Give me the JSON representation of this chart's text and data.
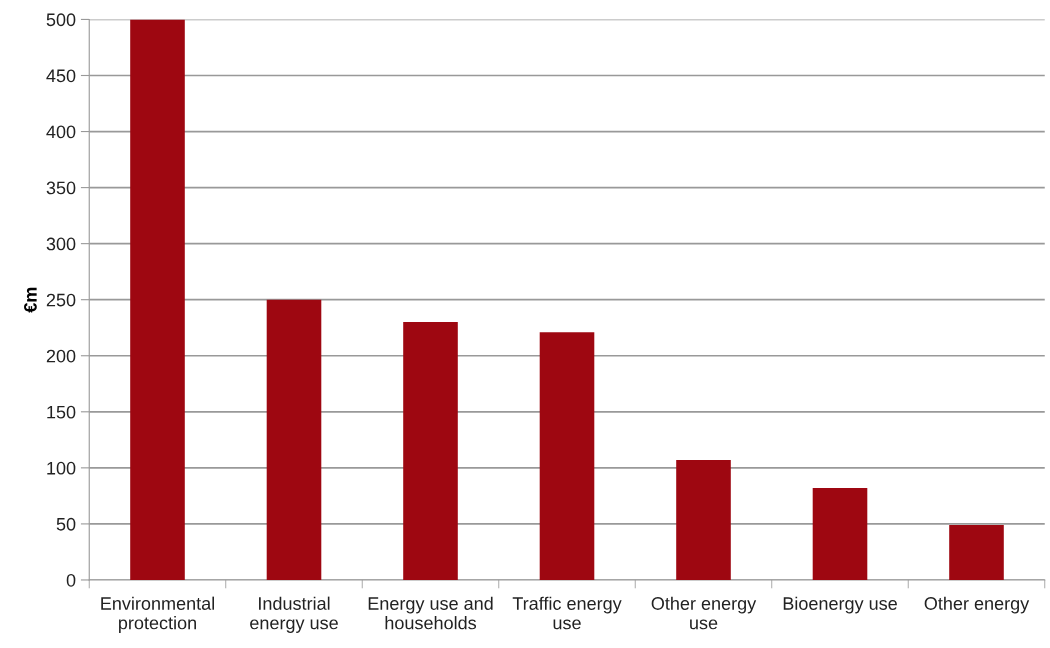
{
  "chart_data": {
    "type": "bar",
    "ylabel": "€m",
    "categories": [
      "Environmental\nprotection",
      "Industrial\nenergy use",
      "Energy use and\nhouseholds",
      "Traffic energy\nuse",
      "Other energy\nuse",
      "Bioenergy use",
      "Other energy"
    ],
    "values": [
      500,
      250,
      230,
      221,
      107,
      82,
      49
    ],
    "color": "#9e0711",
    "ylim": [
      0,
      500
    ],
    "yticks": [
      0,
      50,
      100,
      150,
      200,
      250,
      300,
      350,
      400,
      450,
      500
    ],
    "grid": "y"
  }
}
